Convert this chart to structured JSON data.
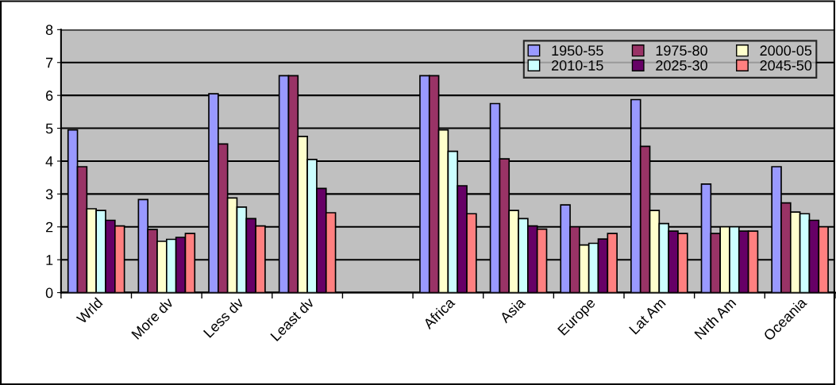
{
  "chart_data": {
    "type": "bar",
    "categories": [
      "Wrld",
      "More dv",
      "Less dv",
      "Least dv",
      null,
      "Africa",
      "Asia",
      "Europe",
      "Lat Am",
      "Nrth Am",
      "Oceania"
    ],
    "series": [
      {
        "name": "1950-55",
        "color": "#9999ff",
        "values": [
          4.95,
          2.83,
          6.05,
          6.6,
          null,
          6.6,
          5.75,
          2.67,
          5.87,
          3.3,
          3.83
        ]
      },
      {
        "name": "1975-80",
        "color": "#993366",
        "values": [
          3.83,
          1.92,
          4.52,
          6.6,
          null,
          6.6,
          4.07,
          2.0,
          4.45,
          1.8,
          2.73
        ]
      },
      {
        "name": "2000-05",
        "color": "#ffffcc",
        "values": [
          2.55,
          1.56,
          2.88,
          4.75,
          null,
          4.95,
          2.5,
          1.45,
          2.5,
          2.0,
          2.45
        ]
      },
      {
        "name": "2010-15",
        "color": "#ccffff",
        "values": [
          2.5,
          1.62,
          2.6,
          4.05,
          null,
          4.3,
          2.25,
          1.5,
          2.1,
          2.0,
          2.4
        ]
      },
      {
        "name": "2025-30",
        "color": "#660066",
        "values": [
          2.2,
          1.68,
          2.25,
          3.17,
          null,
          3.25,
          2.03,
          1.63,
          1.87,
          1.87,
          2.2
        ]
      },
      {
        "name": "2045-50",
        "color": "#ff8080",
        "values": [
          2.03,
          1.8,
          2.03,
          2.43,
          null,
          2.4,
          1.93,
          1.8,
          1.8,
          1.87,
          2.0
        ]
      }
    ],
    "ylim": [
      0,
      8
    ],
    "yticks": [
      0,
      1,
      2,
      3,
      4,
      5,
      6,
      7,
      8
    ],
    "grid": "y",
    "legend": "top right"
  }
}
